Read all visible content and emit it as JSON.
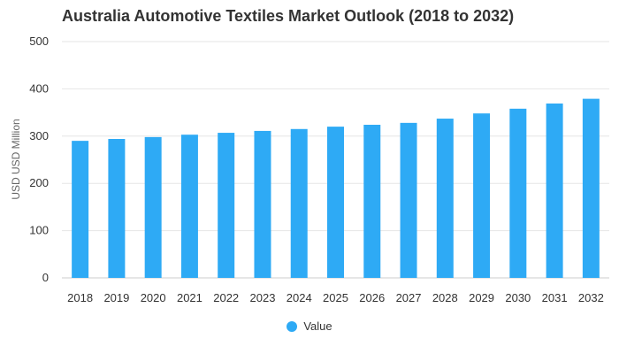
{
  "chart_data": {
    "type": "bar",
    "title": "Australia Automotive Textiles Market Outlook (2018 to 2032)",
    "xlabel": "",
    "ylabel": "USD USD Million",
    "ylim": [
      0,
      500
    ],
    "yticks": [
      0,
      100,
      200,
      300,
      400,
      500
    ],
    "grid": true,
    "legend_position": "bottom",
    "categories": [
      "2018",
      "2019",
      "2020",
      "2021",
      "2022",
      "2023",
      "2024",
      "2025",
      "2026",
      "2027",
      "2028",
      "2029",
      "2030",
      "2031",
      "2032"
    ],
    "series": [
      {
        "name": "Value",
        "color": "#2eaaf5",
        "values": [
          290,
          294,
          298,
          303,
          307,
          311,
          315,
          320,
          324,
          328,
          337,
          348,
          358,
          369,
          379
        ]
      }
    ]
  }
}
